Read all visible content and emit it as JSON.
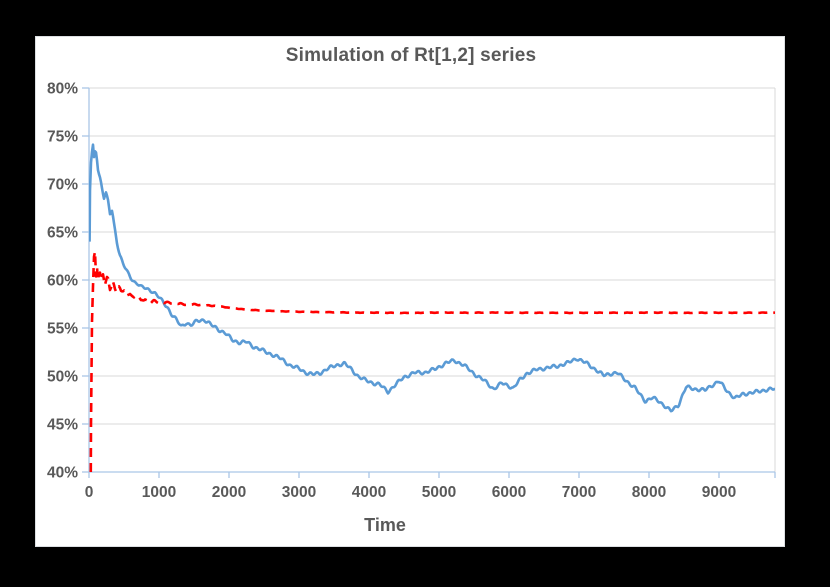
{
  "window": {
    "background_color": "#000000"
  },
  "chart": {
    "title": "Simulation of Rt[1,2] series",
    "x_axis_title": "Time",
    "background_color": "#ffffff",
    "title_color": "#595959",
    "tick_label_color": "#595959",
    "gridline_color": "#d9d9d9",
    "axis_line_color": "#aac6e6",
    "border_color": "#dcdfe2"
  },
  "chart_data": {
    "type": "line",
    "title": "Simulation of Rt[1,2] series",
    "xlabel": "Time",
    "ylabel": "",
    "xlim": [
      0,
      9800
    ],
    "ylim": [
      40,
      80
    ],
    "grid": true,
    "legend": "none",
    "x_ticks": [
      0,
      1000,
      2000,
      3000,
      4000,
      5000,
      6000,
      7000,
      8000,
      9000
    ],
    "x_tick_labels": [
      "0",
      "1000",
      "2000",
      "3000",
      "4000",
      "5000",
      "6000",
      "7000",
      "8000",
      "9000"
    ],
    "y_ticks": [
      80,
      75,
      70,
      65,
      60,
      55,
      50,
      45,
      40
    ],
    "y_tick_labels": [
      "80%",
      "75%",
      "70%",
      "65%",
      "60%",
      "55%",
      "50%",
      "45%",
      "40%"
    ],
    "series": [
      {
        "name": "blue-solid-series",
        "color": "#5B9BD5",
        "style": "solid",
        "width": 2.6,
        "points": [
          [
            8,
            64.0
          ],
          [
            15,
            70.0
          ],
          [
            30,
            72.5
          ],
          [
            45,
            73.5
          ],
          [
            60,
            74.2
          ],
          [
            75,
            72.3
          ],
          [
            90,
            73.8
          ],
          [
            110,
            72.8
          ],
          [
            130,
            71.5
          ],
          [
            160,
            70.6
          ],
          [
            190,
            69.4
          ],
          [
            215,
            68.6
          ],
          [
            240,
            69.2
          ],
          [
            270,
            68.2
          ],
          [
            300,
            66.8
          ],
          [
            330,
            67.2
          ],
          [
            360,
            65.6
          ],
          [
            400,
            63.9
          ],
          [
            440,
            62.6
          ],
          [
            480,
            61.8
          ],
          [
            520,
            61.2
          ],
          [
            560,
            60.6
          ],
          [
            600,
            60.2
          ],
          [
            650,
            59.8
          ],
          [
            700,
            59.7
          ],
          [
            750,
            59.3
          ],
          [
            800,
            59.2
          ],
          [
            850,
            59.0
          ],
          [
            900,
            58.9
          ],
          [
            950,
            58.6
          ],
          [
            1000,
            58.2
          ],
          [
            1050,
            57.7
          ],
          [
            1120,
            57.1
          ],
          [
            1180,
            56.4
          ],
          [
            1250,
            55.8
          ],
          [
            1320,
            55.1
          ],
          [
            1390,
            55.6
          ],
          [
            1450,
            55.3
          ],
          [
            1550,
            55.8
          ],
          [
            1650,
            55.9
          ],
          [
            1750,
            55.3
          ],
          [
            1850,
            54.8
          ],
          [
            1950,
            54.4
          ],
          [
            2050,
            53.7
          ],
          [
            2150,
            53.5
          ],
          [
            2250,
            53.6
          ],
          [
            2350,
            53.1
          ],
          [
            2450,
            52.8
          ],
          [
            2550,
            52.4
          ],
          [
            2650,
            52.1
          ],
          [
            2750,
            51.7
          ],
          [
            2870,
            51.1
          ],
          [
            3000,
            50.8
          ],
          [
            3100,
            50.4
          ],
          [
            3200,
            50.2
          ],
          [
            3300,
            50.3
          ],
          [
            3400,
            50.7
          ],
          [
            3550,
            51.1
          ],
          [
            3650,
            51.3
          ],
          [
            3750,
            50.7
          ],
          [
            3850,
            50.0
          ],
          [
            3950,
            49.6
          ],
          [
            4050,
            49.3
          ],
          [
            4150,
            49.1
          ],
          [
            4270,
            48.3
          ],
          [
            4400,
            49.2
          ],
          [
            4500,
            49.9
          ],
          [
            4650,
            50.4
          ],
          [
            4800,
            50.4
          ],
          [
            4950,
            50.7
          ],
          [
            5100,
            51.3
          ],
          [
            5220,
            51.6
          ],
          [
            5350,
            51.2
          ],
          [
            5500,
            50.3
          ],
          [
            5650,
            49.5
          ],
          [
            5780,
            48.6
          ],
          [
            5900,
            49.2
          ],
          [
            5990,
            49.0
          ],
          [
            6060,
            48.7
          ],
          [
            6150,
            49.6
          ],
          [
            6250,
            50.3
          ],
          [
            6400,
            50.7
          ],
          [
            6550,
            50.8
          ],
          [
            6700,
            51.0
          ],
          [
            6850,
            51.4
          ],
          [
            6970,
            51.9
          ],
          [
            7100,
            51.4
          ],
          [
            7250,
            50.6
          ],
          [
            7350,
            50.0
          ],
          [
            7450,
            50.2
          ],
          [
            7550,
            50.3
          ],
          [
            7650,
            49.7
          ],
          [
            7800,
            48.8
          ],
          [
            7950,
            47.4
          ],
          [
            8050,
            47.7
          ],
          [
            8150,
            47.3
          ],
          [
            8310,
            46.3
          ],
          [
            8420,
            47.0
          ],
          [
            8530,
            48.9
          ],
          [
            8650,
            48.7
          ],
          [
            8800,
            48.5
          ],
          [
            8900,
            49.0
          ],
          [
            9000,
            49.4
          ],
          [
            9120,
            48.4
          ],
          [
            9230,
            47.7
          ],
          [
            9350,
            48.2
          ],
          [
            9500,
            48.3
          ],
          [
            9650,
            48.5
          ],
          [
            9800,
            48.6
          ]
        ]
      },
      {
        "name": "red-dashed-series",
        "color": "#FF0000",
        "style": "dashed",
        "width": 2.6,
        "points": [
          [
            25,
            40.0
          ],
          [
            30,
            47.0
          ],
          [
            38,
            54.5
          ],
          [
            50,
            57.5
          ],
          [
            62,
            60.5
          ],
          [
            72,
            62.5
          ],
          [
            80,
            64.3
          ],
          [
            90,
            62.0
          ],
          [
            100,
            60.5
          ],
          [
            115,
            61.5
          ],
          [
            130,
            59.9
          ],
          [
            150,
            60.9
          ],
          [
            175,
            59.6
          ],
          [
            200,
            60.6
          ],
          [
            230,
            59.3
          ],
          [
            265,
            60.2
          ],
          [
            300,
            59.1
          ],
          [
            340,
            59.8
          ],
          [
            380,
            58.8
          ],
          [
            420,
            59.4
          ],
          [
            460,
            58.6
          ],
          [
            500,
            59.0
          ],
          [
            545,
            58.3
          ],
          [
            590,
            58.8
          ],
          [
            640,
            58.1
          ],
          [
            690,
            58.5
          ],
          [
            740,
            57.8
          ],
          [
            800,
            58.1
          ],
          [
            860,
            57.6
          ],
          [
            920,
            57.8
          ],
          [
            1000,
            57.6
          ],
          [
            1100,
            57.7
          ],
          [
            1200,
            57.5
          ],
          [
            1300,
            57.6
          ],
          [
            1400,
            57.4
          ],
          [
            1500,
            57.5
          ],
          [
            1650,
            57.35
          ],
          [
            1800,
            57.3
          ],
          [
            2000,
            57.1
          ],
          [
            2200,
            56.95
          ],
          [
            2400,
            56.85
          ],
          [
            2700,
            56.75
          ],
          [
            3000,
            56.7
          ],
          [
            3400,
            56.65
          ],
          [
            3800,
            56.6
          ],
          [
            4400,
            56.58
          ],
          [
            5000,
            56.6
          ],
          [
            6000,
            56.6
          ],
          [
            7000,
            56.58
          ],
          [
            8000,
            56.6
          ],
          [
            9000,
            56.58
          ],
          [
            9800,
            56.6
          ]
        ]
      }
    ]
  }
}
